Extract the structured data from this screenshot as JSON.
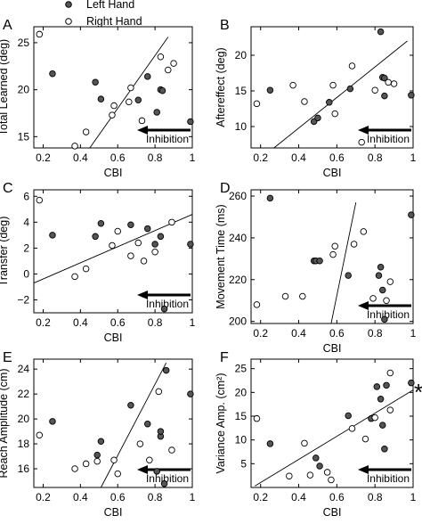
{
  "legend": {
    "placement": "top",
    "entries": [
      {
        "label": "Left Hand",
        "marker": "filled",
        "color": "#555555"
      },
      {
        "label": "Right Hand",
        "marker": "open",
        "color": "#ffffff"
      }
    ]
  },
  "inhibition_label": "Inhibition",
  "chart_data": [
    {
      "panel": "A",
      "type": "scatter",
      "xlabel": "CBI",
      "ylabel": "Total Learned (deg)",
      "xlim": [
        0.15,
        1.0
      ],
      "ylim": [
        13.8,
        26.7
      ],
      "xticks": [
        0.2,
        0.4,
        0.6,
        0.8,
        1
      ],
      "xtick_labels": [
        "0.2",
        "0.4",
        "0.6",
        "0.8",
        "1"
      ],
      "yticks": [
        15,
        20,
        25
      ],
      "ytick_labels": [
        "15",
        "20",
        "25"
      ],
      "grid": false,
      "fit_line": [
        [
          0.45,
          13.8
        ],
        [
          0.87,
          25.6
        ]
      ],
      "series": [
        {
          "name": "Left Hand",
          "marker": "filled",
          "points": [
            [
              0.25,
              21.7
            ],
            [
              0.48,
              20.8
            ],
            [
              0.51,
              19.0
            ],
            [
              0.71,
              18.9
            ],
            [
              0.76,
              21.4
            ],
            [
              0.81,
              17.6
            ],
            [
              0.83,
              20.0
            ],
            [
              0.84,
              19.9
            ],
            [
              0.99,
              16.6
            ]
          ]
        },
        {
          "name": "Right Hand",
          "marker": "open",
          "points": [
            [
              0.18,
              25.9
            ],
            [
              0.37,
              14.0
            ],
            [
              0.43,
              15.5
            ],
            [
              0.57,
              17.3
            ],
            [
              0.58,
              18.3
            ],
            [
              0.66,
              18.7
            ],
            [
              0.67,
              20.2
            ],
            [
              0.73,
              16.7
            ],
            [
              0.83,
              23.5
            ],
            [
              0.87,
              22.1
            ],
            [
              0.9,
              22.8
            ]
          ]
        }
      ]
    },
    {
      "panel": "B",
      "type": "scatter",
      "xlabel": "CBI",
      "ylabel": "Aftereffect (deg)",
      "xlim": [
        0.15,
        1.0
      ],
      "ylim": [
        7.0,
        24.0
      ],
      "xticks": [
        0.2,
        0.4,
        0.6,
        0.8,
        1
      ],
      "xtick_labels": [
        "0.2",
        "0.4",
        "0.6",
        "0.8",
        "1"
      ],
      "yticks": [
        10,
        15,
        20
      ],
      "ytick_labels": [
        "10",
        "15",
        "20"
      ],
      "grid": false,
      "fit_line": [
        [
          0.27,
          7.0
        ],
        [
          0.97,
          22.0
        ]
      ],
      "series": [
        {
          "name": "Left Hand",
          "marker": "filled",
          "points": [
            [
              0.25,
              15.1
            ],
            [
              0.48,
              10.7
            ],
            [
              0.5,
              11.2
            ],
            [
              0.56,
              13.4
            ],
            [
              0.67,
              15.3
            ],
            [
              0.83,
              23.3
            ],
            [
              0.84,
              16.9
            ],
            [
              0.85,
              16.8
            ],
            [
              0.85,
              14.3
            ],
            [
              0.99,
              14.4
            ]
          ]
        },
        {
          "name": "Right Hand",
          "marker": "open",
          "points": [
            [
              0.18,
              13.2
            ],
            [
              0.37,
              15.8
            ],
            [
              0.43,
              13.5
            ],
            [
              0.58,
              15.8
            ],
            [
              0.59,
              11.8
            ],
            [
              0.68,
              18.5
            ],
            [
              0.73,
              7.8
            ],
            [
              0.8,
              15.1
            ],
            [
              0.87,
              16.2
            ],
            [
              0.9,
              16.0
            ]
          ]
        }
      ]
    },
    {
      "panel": "C",
      "type": "scatter",
      "xlabel": "CBI",
      "ylabel": "Transfer (deg)",
      "xlim": [
        0.15,
        1.0
      ],
      "ylim": [
        -3.0,
        6.5
      ],
      "xticks": [
        0.2,
        0.4,
        0.6,
        0.8,
        1
      ],
      "xtick_labels": [
        "0.2",
        "0.4",
        "0.6",
        "0.8",
        "1"
      ],
      "yticks": [
        -2,
        0,
        2,
        4,
        6
      ],
      "ytick_labels": [
        "−2",
        "0",
        "2",
        "4",
        "6"
      ],
      "grid": false,
      "fit_line": [
        [
          0.15,
          -0.7
        ],
        [
          1.0,
          4.6
        ]
      ],
      "series": [
        {
          "name": "Left Hand",
          "marker": "filled",
          "points": [
            [
              0.25,
              3.0
            ],
            [
              0.48,
              2.9
            ],
            [
              0.51,
              3.9
            ],
            [
              0.67,
              3.8
            ],
            [
              0.76,
              3.5
            ],
            [
              0.8,
              2.3
            ],
            [
              0.83,
              2.9
            ],
            [
              0.85,
              -2.7
            ],
            [
              0.99,
              2.3
            ]
          ]
        },
        {
          "name": "Right Hand",
          "marker": "open",
          "points": [
            [
              0.18,
              5.7
            ],
            [
              0.37,
              -0.2
            ],
            [
              0.43,
              0.4
            ],
            [
              0.57,
              2.2
            ],
            [
              0.6,
              3.3
            ],
            [
              0.67,
              1.4
            ],
            [
              0.71,
              2.4
            ],
            [
              0.74,
              1.0
            ],
            [
              0.8,
              1.7
            ],
            [
              0.89,
              4.0
            ]
          ]
        }
      ]
    },
    {
      "panel": "D",
      "type": "scatter",
      "xlabel": "CBI",
      "ylabel": "Movement Time (ms)",
      "xlim": [
        0.15,
        1.0
      ],
      "ylim": [
        199,
        263
      ],
      "xticks": [
        0.2,
        0.4,
        0.6,
        0.8,
        1
      ],
      "xtick_labels": [
        "0.2",
        "0.4",
        "0.6",
        "0.8",
        "1"
      ],
      "yticks": [
        200,
        220,
        240,
        260
      ],
      "ytick_labels": [
        "200",
        "220",
        "240",
        "260"
      ],
      "grid": false,
      "fit_line": [
        [
          0.57,
          199
        ],
        [
          0.7,
          257
        ]
      ],
      "series": [
        {
          "name": "Left Hand",
          "marker": "filled",
          "points": [
            [
              0.25,
              259
            ],
            [
              0.48,
              229
            ],
            [
              0.49,
              229
            ],
            [
              0.51,
              229
            ],
            [
              0.66,
              222
            ],
            [
              0.82,
              222
            ],
            [
              0.83,
              226
            ],
            [
              0.84,
              215
            ],
            [
              0.85,
              201
            ],
            [
              0.99,
              251
            ]
          ]
        },
        {
          "name": "Right Hand",
          "marker": "open",
          "points": [
            [
              0.18,
              208
            ],
            [
              0.33,
              212
            ],
            [
              0.42,
              212
            ],
            [
              0.58,
              232
            ],
            [
              0.59,
              236
            ],
            [
              0.69,
              237
            ],
            [
              0.74,
              243
            ],
            [
              0.79,
              211
            ],
            [
              0.86,
              210
            ],
            [
              0.88,
              219
            ]
          ]
        }
      ]
    },
    {
      "panel": "E",
      "type": "scatter",
      "xlabel": "CBI",
      "ylabel": "Reach Amplitude (cm)",
      "xlim": [
        0.15,
        1.0
      ],
      "ylim": [
        14.5,
        24.8
      ],
      "xticks": [
        0.2,
        0.4,
        0.6,
        0.8,
        1
      ],
      "xtick_labels": [
        "0.2",
        "0.4",
        "0.6",
        "0.8",
        "1"
      ],
      "yticks": [
        16,
        18,
        20,
        22,
        24
      ],
      "ytick_labels": [
        "16",
        "18",
        "20",
        "22",
        "24"
      ],
      "grid": false,
      "fit_line": [
        [
          0.51,
          14.5
        ],
        [
          0.86,
          24.5
        ]
      ],
      "series": [
        {
          "name": "Left Hand",
          "marker": "filled",
          "points": [
            [
              0.25,
              19.8
            ],
            [
              0.49,
              17.1
            ],
            [
              0.51,
              18.2
            ],
            [
              0.67,
              21.1
            ],
            [
              0.76,
              19.6
            ],
            [
              0.81,
              15.8
            ],
            [
              0.83,
              18.6
            ],
            [
              0.83,
              19.0
            ],
            [
              0.85,
              14.8
            ],
            [
              0.86,
              23.9
            ],
            [
              0.99,
              22.0
            ]
          ]
        },
        {
          "name": "Right Hand",
          "marker": "open",
          "points": [
            [
              0.18,
              18.7
            ],
            [
              0.37,
              16.0
            ],
            [
              0.43,
              16.4
            ],
            [
              0.49,
              16.6
            ],
            [
              0.58,
              16.7
            ],
            [
              0.6,
              15.6
            ],
            [
              0.72,
              18.0
            ],
            [
              0.77,
              16.7
            ],
            [
              0.82,
              22.2
            ],
            [
              0.89,
              17.5
            ]
          ]
        }
      ]
    },
    {
      "panel": "F",
      "type": "scatter",
      "xlabel": "CBI",
      "ylabel": "Variance Amp. (cm²)",
      "xlim": [
        0.15,
        1.0
      ],
      "ylim": [
        0,
        27
      ],
      "xticks": [
        0.2,
        0.4,
        0.6,
        0.8,
        1
      ],
      "xtick_labels": [
        "0.2",
        "0.4",
        "0.6",
        "0.8",
        "1"
      ],
      "yticks": [
        5,
        10,
        15,
        20,
        25
      ],
      "ytick_labels": [
        "5",
        "10",
        "15",
        "20",
        "25"
      ],
      "grid": false,
      "fit_line": [
        [
          0.17,
          0.3
        ],
        [
          1.0,
          20.5
        ]
      ],
      "annotation": "*",
      "series": [
        {
          "name": "Left Hand",
          "marker": "filled",
          "points": [
            [
              0.25,
              9.2
            ],
            [
              0.49,
              6.2
            ],
            [
              0.51,
              4.5
            ],
            [
              0.66,
              15.1
            ],
            [
              0.78,
              14.5
            ],
            [
              0.81,
              21.2
            ],
            [
              0.83,
              18.6
            ],
            [
              0.84,
              13.1
            ],
            [
              0.85,
              8.1
            ],
            [
              0.86,
              21.5
            ],
            [
              0.99,
              22.0
            ]
          ]
        },
        {
          "name": "Right Hand",
          "marker": "open",
          "points": [
            [
              0.18,
              14.5
            ],
            [
              0.35,
              2.4
            ],
            [
              0.43,
              9.3
            ],
            [
              0.46,
              2.6
            ],
            [
              0.55,
              3.2
            ],
            [
              0.57,
              1.6
            ],
            [
              0.68,
              12.4
            ],
            [
              0.75,
              10.2
            ],
            [
              0.8,
              14.7
            ],
            [
              0.88,
              24.1
            ],
            [
              0.88,
              16.3
            ]
          ]
        }
      ]
    }
  ]
}
